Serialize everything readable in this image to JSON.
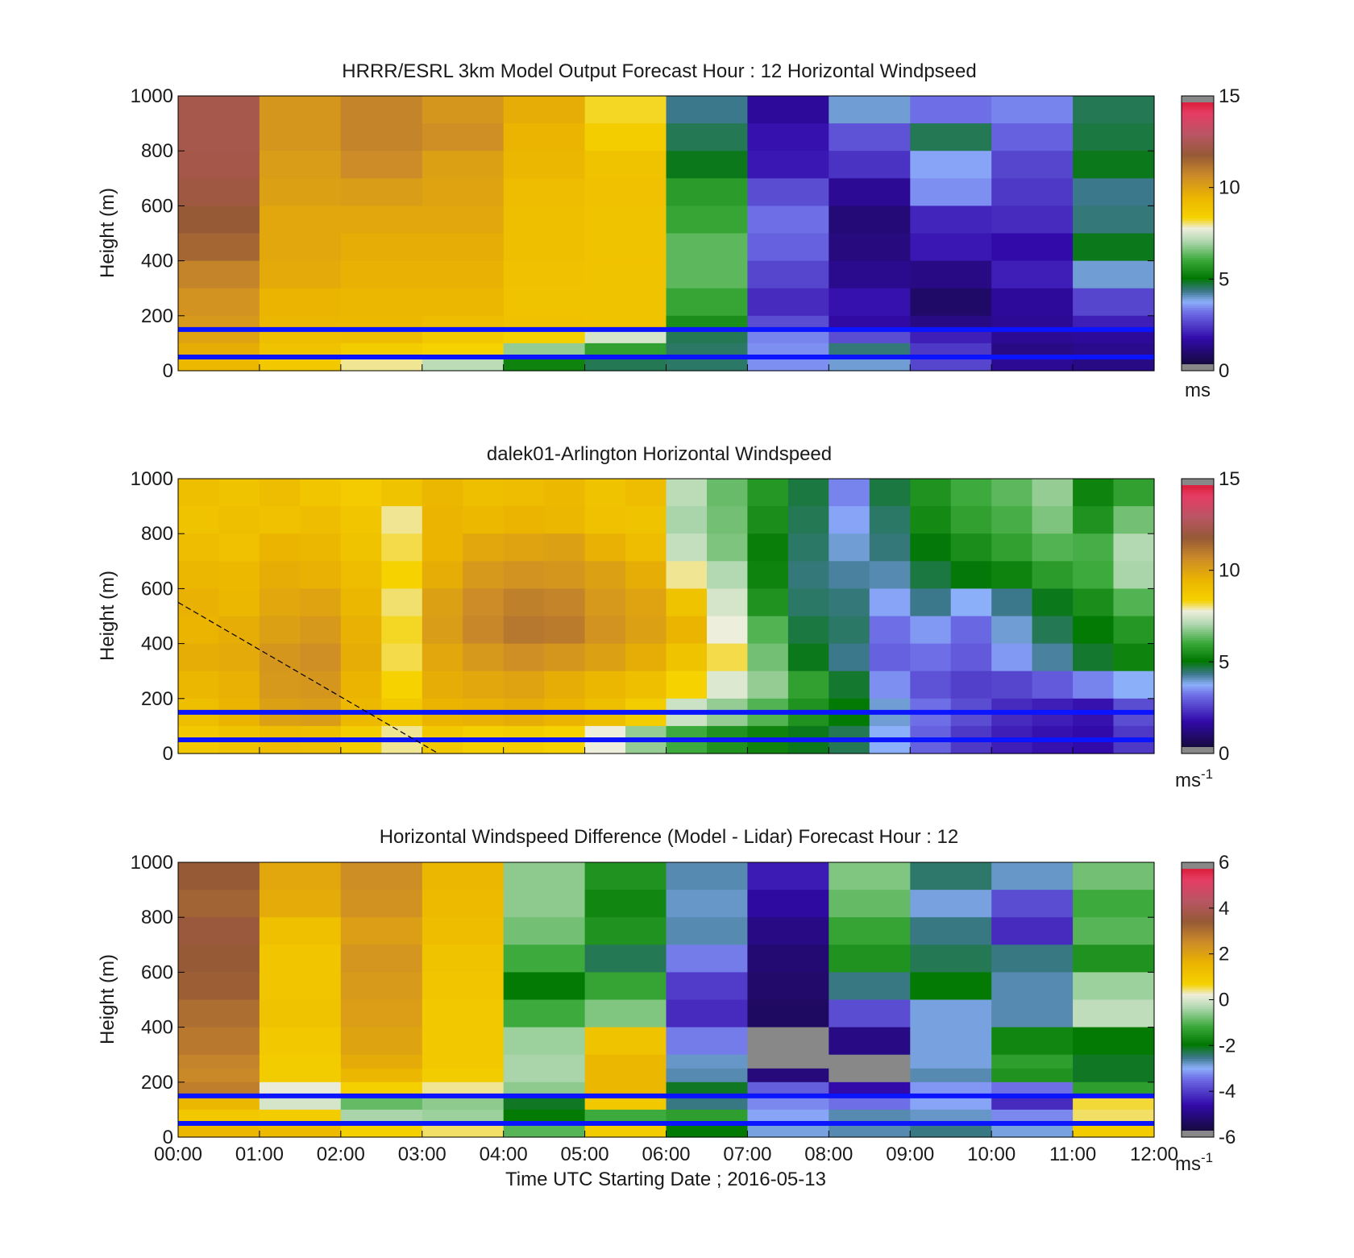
{
  "figure": {
    "xlabel": "Time UTC  Starting Date ; 2016-05-13",
    "x_ticks": [
      "00:00",
      "01:00",
      "02:00",
      "03:00",
      "04:00",
      "05:00",
      "06:00",
      "07:00",
      "08:00",
      "09:00",
      "10:00",
      "11:00",
      "12:00"
    ]
  },
  "chart_data": [
    {
      "type": "heatmap",
      "title": "HRRR/ESRL 3km Model Output   Forecast Hour : 12 Horizontal Windpseed",
      "ylabel": "Height (m)",
      "xlim": [
        0,
        12
      ],
      "ylim": [
        0,
        1000
      ],
      "y_ticks": [
        "0",
        "200",
        "400",
        "600",
        "800",
        "1000"
      ],
      "cmin": 0,
      "cmax": 15,
      "colorbar_ticks": [
        "0",
        "5",
        "10",
        "15"
      ],
      "colorbar_unit": "ms",
      "colorbar_unit_sup": "",
      "heights": [
        1000,
        900,
        800,
        700,
        600,
        500,
        400,
        300,
        200,
        150,
        100,
        50,
        0
      ],
      "x_bins": [
        0,
        1,
        2,
        3,
        4,
        5,
        6,
        7,
        8,
        9,
        10,
        11,
        12
      ],
      "values": [
        [
          12.6,
          10.5,
          11.0,
          10.5,
          9.8,
          8.3,
          4.2,
          1.3,
          3.8,
          3.0,
          3.2,
          4.5
        ],
        [
          12.6,
          10.5,
          11.0,
          10.7,
          9.6,
          8.6,
          4.5,
          1.6,
          2.6,
          4.5,
          2.8,
          4.6
        ],
        [
          12.5,
          10.3,
          10.8,
          10.2,
          9.5,
          9.0,
          4.8,
          1.7,
          2.1,
          3.5,
          2.4,
          4.8
        ],
        [
          12.3,
          10.2,
          10.3,
          10.1,
          9.3,
          9.1,
          5.7,
          2.5,
          1.2,
          3.3,
          2.2,
          4.2
        ],
        [
          12.0,
          10.0,
          10.0,
          10.0,
          9.2,
          9.0,
          5.9,
          3.0,
          0.8,
          1.9,
          2.0,
          4.3
        ],
        [
          11.7,
          10.0,
          9.8,
          9.8,
          9.2,
          9.0,
          6.3,
          2.8,
          0.9,
          1.7,
          1.5,
          4.8
        ],
        [
          11.0,
          9.9,
          9.7,
          9.7,
          9.1,
          9.0,
          6.3,
          2.4,
          1.1,
          1.0,
          1.8,
          3.8
        ],
        [
          10.6,
          9.6,
          9.5,
          9.5,
          9.0,
          9.0,
          5.9,
          2.0,
          1.6,
          0.6,
          1.3,
          2.4
        ],
        [
          10.4,
          9.5,
          9.4,
          9.3,
          9.1,
          9.0,
          5.4,
          2.5,
          1.4,
          1.0,
          1.2,
          1.8
        ],
        [
          10.1,
          9.2,
          9.3,
          8.8,
          8.5,
          7.5,
          4.5,
          3.2,
          2.5,
          1.8,
          1.2,
          1.3
        ],
        [
          9.8,
          9.0,
          8.6,
          8.4,
          6.8,
          5.8,
          4.4,
          3.3,
          4.3,
          2.2,
          1.0,
          1.1
        ],
        [
          9.4,
          8.8,
          8.0,
          7.2,
          5.2,
          4.5,
          4.4,
          3.3,
          3.8,
          2.4,
          1.2,
          1.0
        ]
      ],
      "blue_lines": [
        150,
        50
      ]
    },
    {
      "type": "heatmap",
      "title": "dalek01-Arlington  Horizontal Windspeed",
      "ylabel": "Height (m)",
      "xlim": [
        0,
        12
      ],
      "ylim": [
        0,
        1000
      ],
      "y_ticks": [
        "0",
        "200",
        "400",
        "600",
        "800",
        "1000"
      ],
      "cmin": 0,
      "cmax": 15,
      "colorbar_ticks": [
        "0",
        "5",
        "10",
        "15"
      ],
      "colorbar_unit": "ms",
      "colorbar_unit_sup": "-1",
      "heights": [
        1000,
        900,
        800,
        700,
        600,
        500,
        400,
        300,
        200,
        100,
        0
      ],
      "x_bins": [
        0,
        0.5,
        1,
        1.5,
        2,
        2.5,
        3,
        3.5,
        4,
        4.5,
        5,
        5.5,
        6,
        6.5,
        7,
        7.5,
        8,
        8.5,
        9,
        9.5,
        10,
        10.5,
        11,
        11.5,
        12
      ],
      "values": [
        [
          9.2,
          9.0,
          9.3,
          8.9,
          8.7,
          9.0,
          9.5,
          9.2,
          9.3,
          9.4,
          9.0,
          9.3,
          7.2,
          6.4,
          5.6,
          4.6,
          3.2,
          4.6,
          5.5,
          6.0,
          6.3,
          6.8,
          5.2,
          5.8
        ],
        [
          9.0,
          9.2,
          9.1,
          9.3,
          8.9,
          8.0,
          9.6,
          9.4,
          9.6,
          9.5,
          9.1,
          9.0,
          7.0,
          6.5,
          5.4,
          4.5,
          3.5,
          4.4,
          5.3,
          5.8,
          6.1,
          6.6,
          5.5,
          6.5
        ],
        [
          9.3,
          9.1,
          9.6,
          9.5,
          9.0,
          8.2,
          9.6,
          10.0,
          10.1,
          10.2,
          9.7,
          9.3,
          7.3,
          6.6,
          5.1,
          4.4,
          3.8,
          4.3,
          4.9,
          5.4,
          5.8,
          6.2,
          6.1,
          7.1
        ],
        [
          9.5,
          9.4,
          9.8,
          9.7,
          9.3,
          8.4,
          9.8,
          10.4,
          10.6,
          10.5,
          10.2,
          9.8,
          8.0,
          7.1,
          5.2,
          4.3,
          4.1,
          4.0,
          4.6,
          4.9,
          5.2,
          5.7,
          6.0,
          7.0
        ],
        [
          9.7,
          9.5,
          10.0,
          10.1,
          9.5,
          8.1,
          10.2,
          10.8,
          11.1,
          11.0,
          10.4,
          10.1,
          9.0,
          7.5,
          5.5,
          4.4,
          4.3,
          3.5,
          4.2,
          3.6,
          4.2,
          4.8,
          5.4,
          6.2
        ],
        [
          9.6,
          9.8,
          10.2,
          10.4,
          9.7,
          8.3,
          10.3,
          10.9,
          11.3,
          11.2,
          10.6,
          10.2,
          9.6,
          7.8,
          6.2,
          4.6,
          4.4,
          3.0,
          3.4,
          2.9,
          3.8,
          4.5,
          5.0,
          5.6
        ],
        [
          9.8,
          9.9,
          10.5,
          10.7,
          9.8,
          8.2,
          10.0,
          10.4,
          10.7,
          10.5,
          10.2,
          9.8,
          9.0,
          8.2,
          6.5,
          4.8,
          4.2,
          2.8,
          3.0,
          2.7,
          3.4,
          4.1,
          4.7,
          5.2
        ],
        [
          9.5,
          9.7,
          10.4,
          10.5,
          9.6,
          8.4,
          9.8,
          10.0,
          10.1,
          9.8,
          9.5,
          9.2,
          8.4,
          7.6,
          6.8,
          5.8,
          4.7,
          3.3,
          2.6,
          2.3,
          2.4,
          2.7,
          3.2,
          3.6
        ],
        [
          9.2,
          9.6,
          10.2,
          10.3,
          9.4,
          8.8,
          9.6,
          9.7,
          9.8,
          9.6,
          9.2,
          8.6,
          7.4,
          6.8,
          6.2,
          5.5,
          5.0,
          3.8,
          3.0,
          2.5,
          2.0,
          1.8,
          1.6,
          2.5
        ],
        [
          8.8,
          9.0,
          9.3,
          9.2,
          8.6,
          8.0,
          8.8,
          8.5,
          8.6,
          8.4,
          7.8,
          6.8,
          6.0,
          5.5,
          5.2,
          4.8,
          4.5,
          3.6,
          2.8,
          2.2,
          1.8,
          1.6,
          1.5,
          2.2
        ]
      ],
      "blue_lines": [
        150,
        50
      ],
      "dashed_line": [
        [
          0,
          550
        ],
        [
          3.2,
          0
        ]
      ]
    },
    {
      "type": "heatmap",
      "title": "Horizontal Windspeed Difference (Model - Lidar) Forecast Hour : 12",
      "ylabel": "Height (m)",
      "xlim": [
        0,
        12
      ],
      "ylim": [
        0,
        1000
      ],
      "y_ticks": [
        "0",
        "200",
        "400",
        "600",
        "800",
        "1000"
      ],
      "cmin": -6,
      "cmax": 6,
      "colorbar_ticks": [
        "-6",
        "-4",
        "-2",
        "0",
        "2",
        "4",
        "6"
      ],
      "colorbar_unit": "ms",
      "colorbar_unit_sup": "-1",
      "heights": [
        1000,
        900,
        800,
        700,
        600,
        500,
        400,
        300,
        250,
        200,
        150,
        100,
        50,
        0
      ],
      "x_bins": [
        0,
        1,
        2,
        3,
        4,
        5,
        6,
        7,
        8,
        9,
        10,
        11,
        12
      ],
      "values": [
        [
          3.6,
          2.0,
          2.6,
          1.6,
          -0.6,
          -1.6,
          -2.8,
          -4.6,
          -0.7,
          -2.5,
          -2.9,
          -0.8
        ],
        [
          3.4,
          1.9,
          2.5,
          1.5,
          -0.6,
          -1.8,
          -2.9,
          -4.9,
          -0.9,
          -3.0,
          -4.0,
          -1.2
        ],
        [
          3.7,
          1.3,
          2.2,
          1.4,
          -0.8,
          -1.6,
          -2.8,
          -5.2,
          -1.3,
          -2.6,
          -4.4,
          -1.0
        ],
        [
          3.6,
          1.1,
          2.4,
          1.2,
          -1.2,
          -2.4,
          -3.5,
          -5.4,
          -1.6,
          -2.4,
          -2.6,
          -1.6
        ],
        [
          3.5,
          1.1,
          2.3,
          1.1,
          -2.0,
          -1.3,
          -4.2,
          -5.5,
          -2.6,
          -2.0,
          -2.8,
          -0.5
        ],
        [
          3.2,
          1.2,
          2.2,
          1.0,
          -1.2,
          -0.7,
          -4.4,
          -5.6,
          -4.0,
          -3.0,
          -2.8,
          -0.2
        ],
        [
          3.0,
          1.0,
          2.1,
          1.0,
          -0.5,
          1.2,
          -3.5,
          -99,
          -5.2,
          -3.0,
          -1.8,
          -2.0
        ],
        [
          2.8,
          0.9,
          1.9,
          1.0,
          -0.4,
          1.6,
          -2.9,
          -99,
          -99,
          -3.0,
          -1.4,
          -2.2
        ],
        [
          2.7,
          0.9,
          1.6,
          0.9,
          -0.4,
          1.6,
          -2.8,
          -5.3,
          -99,
          -2.8,
          -1.6,
          -2.2
        ],
        [
          2.9,
          0.2,
          0.8,
          0.4,
          -0.6,
          1.6,
          -2.2,
          -3.8,
          -4.8,
          -3.3,
          -3.6,
          -1.4
        ],
        [
          1.6,
          0.0,
          -0.9,
          -0.6,
          -2.2,
          1.0,
          -2.6,
          -3.4,
          -3.6,
          -3.2,
          -4.4,
          0.6
        ],
        [
          1.0,
          0.9,
          -0.4,
          -0.5,
          -2.0,
          -1.2,
          -1.4,
          -3.2,
          -2.8,
          -2.9,
          -3.4,
          0.5
        ],
        [
          1.6,
          1.5,
          0.8,
          0.5,
          -1.0,
          0.9,
          -2.0,
          -3.0,
          -2.8,
          -2.6,
          -3.0,
          0.9
        ]
      ],
      "blue_lines": [
        150,
        50
      ]
    }
  ]
}
